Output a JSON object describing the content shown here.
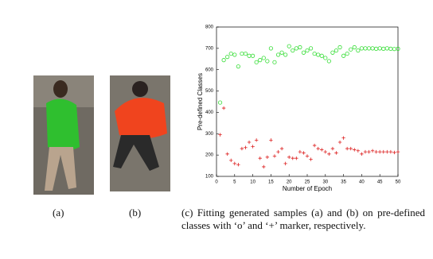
{
  "chart_data": {
    "type": "scatter",
    "xlabel": "Number of Epoch",
    "ylabel": "Pre-defined Classes",
    "x": [
      1,
      2,
      3,
      4,
      5,
      6,
      7,
      8,
      9,
      10,
      11,
      12,
      13,
      14,
      15,
      16,
      17,
      18,
      19,
      20,
      21,
      22,
      23,
      24,
      25,
      26,
      27,
      28,
      29,
      30,
      31,
      32,
      33,
      34,
      35,
      36,
      37,
      38,
      39,
      40,
      41,
      42,
      43,
      44,
      45,
      46,
      47,
      48,
      49,
      50
    ],
    "series": [
      {
        "color": "#33dd33",
        "marker": "o",
        "values": [
          446,
          645,
          660,
          675,
          670,
          615,
          675,
          675,
          665,
          665,
          635,
          645,
          655,
          640,
          700,
          635,
          670,
          680,
          670,
          710,
          690,
          700,
          705,
          680,
          690,
          700,
          675,
          670,
          665,
          655,
          640,
          680,
          690,
          705,
          665,
          675,
          695,
          705,
          690,
          700,
          700,
          700,
          700,
          698,
          700,
          698,
          700,
          698,
          697,
          698
        ]
      },
      {
        "color": "#dd2222",
        "marker": "+",
        "values": [
          295,
          420,
          205,
          175,
          160,
          155,
          230,
          235,
          260,
          240,
          270,
          185,
          145,
          190,
          270,
          195,
          215,
          230,
          160,
          190,
          185,
          185,
          215,
          210,
          195,
          180,
          245,
          230,
          225,
          215,
          205,
          230,
          210,
          260,
          280,
          230,
          230,
          225,
          220,
          205,
          215,
          215,
          220,
          215,
          215,
          215,
          215,
          215,
          212,
          215
        ]
      }
    ],
    "xlim": [
      0,
      50
    ],
    "xticks": [
      0,
      5,
      10,
      15,
      20,
      25,
      30,
      35,
      40,
      45,
      50
    ],
    "ylim": [
      100,
      800
    ],
    "yticks": [
      100,
      200,
      300,
      400,
      500,
      600,
      700,
      800
    ]
  },
  "captions": [
    "(a)",
    "(b)",
    "(c) Fitting generated samples (a) and (b) on pre-defined classes with ‘o’ and ‘+’ marker, respectively."
  ]
}
